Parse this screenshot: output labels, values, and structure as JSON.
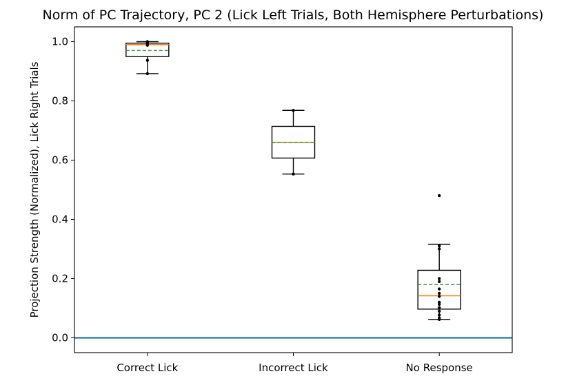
{
  "chart_data": {
    "type": "box",
    "title": "Norm of PC Trajectory, PC 2  (Lick Left Trials, Both Hemisphere Perturbations)",
    "xlabel": "",
    "ylabel": "Projection Strength (Normalized), Lick Right Trials",
    "ylim": [
      -0.05,
      1.05
    ],
    "yticks": [
      "0.0",
      "0.2",
      "0.4",
      "0.6",
      "0.8",
      "1.0"
    ],
    "grid": false,
    "reference_line": {
      "y": 0.0,
      "color": "#1f77b4"
    },
    "colors": {
      "median": "#ff7f0e",
      "mean": "#2ca02c",
      "box": "#000000",
      "points": "#000000"
    },
    "categories": [
      "Correct Lick",
      "Incorrect Lick",
      "No Response"
    ],
    "boxes": [
      {
        "category": "Correct Lick",
        "whisker_low": 0.892,
        "q1": 0.95,
        "median": 0.99,
        "q3": 0.995,
        "whisker_high": 1.0,
        "mean": 0.97,
        "points": [
          0.892,
          0.937,
          0.988,
          0.993,
          0.997,
          1.0
        ]
      },
      {
        "category": "Incorrect Lick",
        "whisker_low": 0.553,
        "q1": 0.607,
        "median": 0.66,
        "q3": 0.714,
        "whisker_high": 0.768,
        "mean": 0.66,
        "points": [
          0.553,
          0.768
        ]
      },
      {
        "category": "No Response",
        "whisker_low": 0.062,
        "q1": 0.097,
        "median": 0.142,
        "q3": 0.228,
        "whisker_high": 0.316,
        "mean": 0.18,
        "points": [
          0.062,
          0.067,
          0.077,
          0.09,
          0.102,
          0.113,
          0.12,
          0.14,
          0.15,
          0.165,
          0.19,
          0.2,
          0.3,
          0.31,
          0.48
        ]
      }
    ]
  }
}
